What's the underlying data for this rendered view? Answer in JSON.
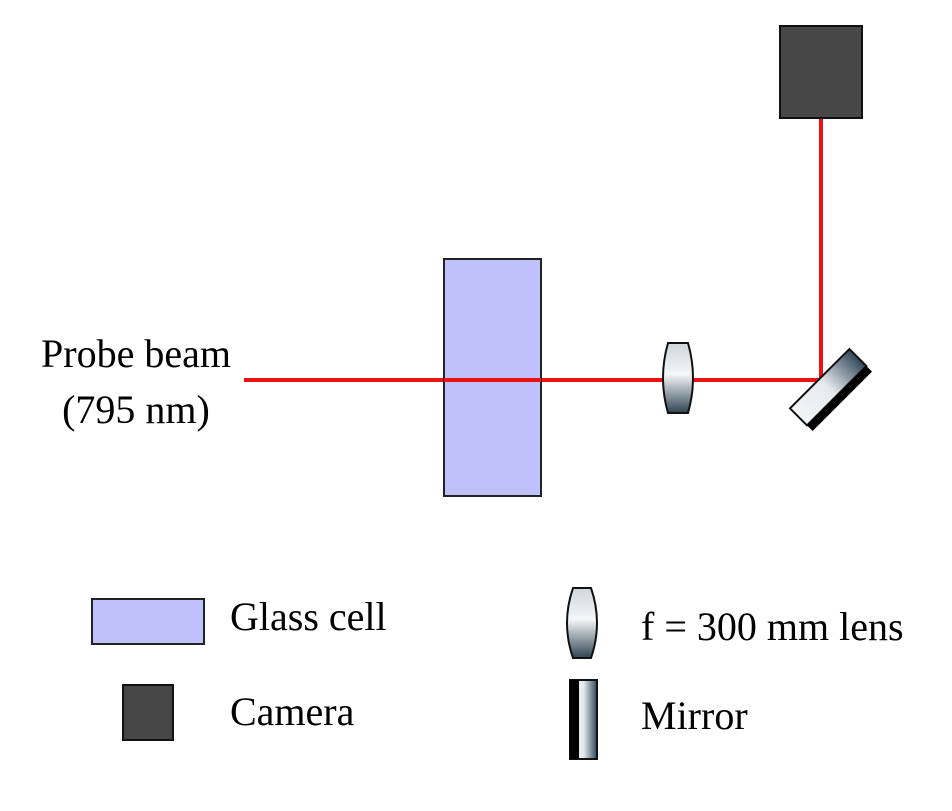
{
  "diagram": {
    "probe_beam_label": "Probe beam",
    "probe_beam_wavelength": "(795 nm)",
    "beam_color": "#ee1111",
    "glass_cell_color": "#c0c0fc",
    "camera_color": "#474747"
  },
  "legend": {
    "glass_cell": "Glass cell",
    "camera": "Camera",
    "lens": "f = 300 mm lens",
    "mirror": "Mirror"
  }
}
